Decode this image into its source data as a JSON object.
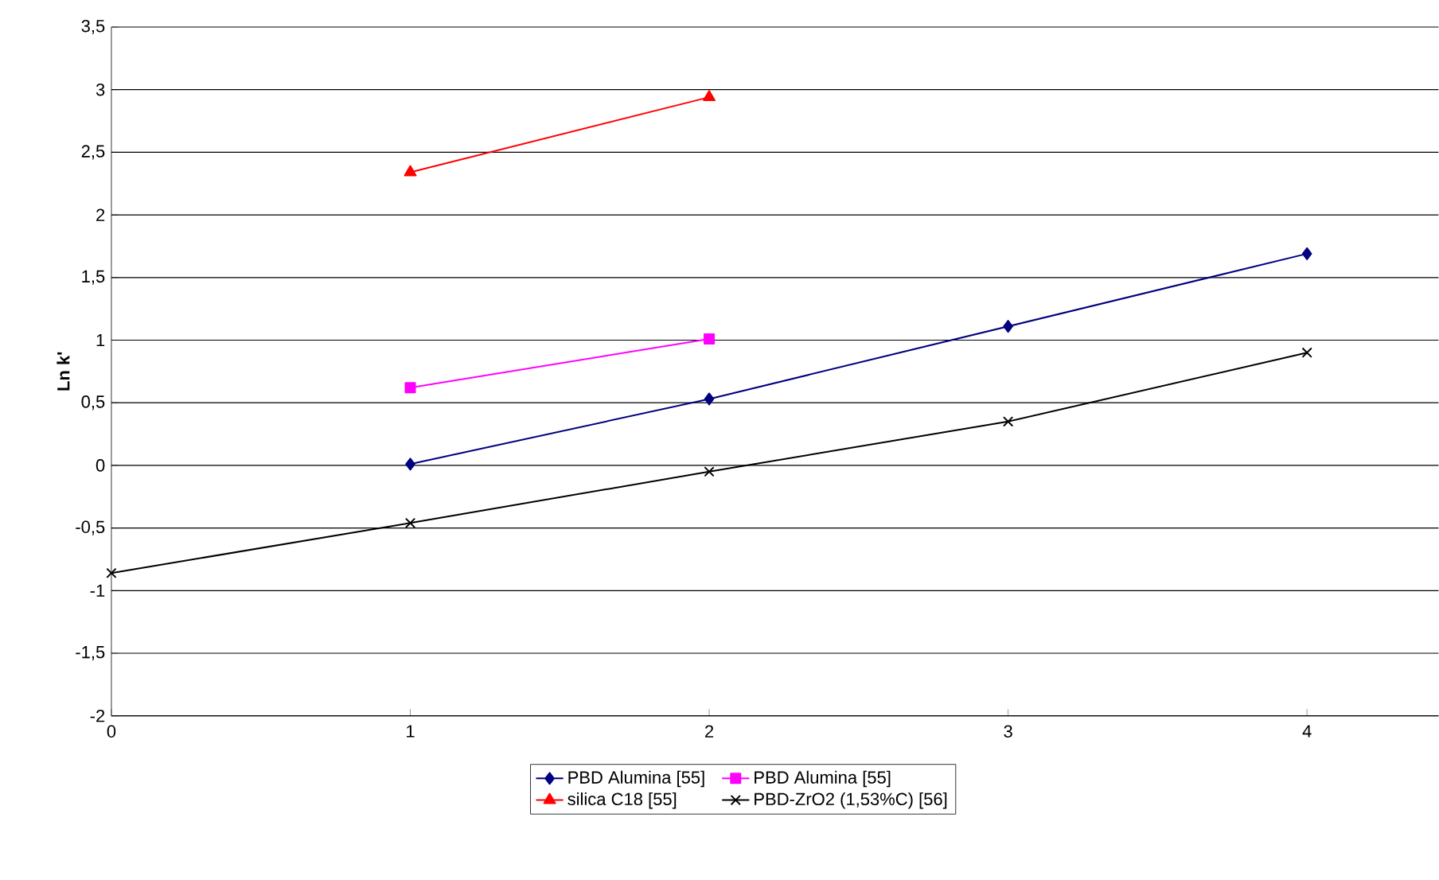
{
  "chart_data": {
    "type": "line",
    "ylabel": "Ln k'",
    "x": [
      0,
      1,
      2,
      3,
      4
    ],
    "xlim": [
      0,
      4.44
    ],
    "xticks": [
      0,
      1,
      2,
      3,
      4
    ],
    "ylim": [
      -2,
      3.5
    ],
    "yticks": [
      {
        "value": -2,
        "label": "-2"
      },
      {
        "value": -1.5,
        "label": "-1,5"
      },
      {
        "value": -1,
        "label": "-1"
      },
      {
        "value": -0.5,
        "label": "-0,5"
      },
      {
        "value": 0,
        "label": "0"
      },
      {
        "value": 0.5,
        "label": "0,5"
      },
      {
        "value": 1,
        "label": "1"
      },
      {
        "value": 1.5,
        "label": "1,5"
      },
      {
        "value": 2,
        "label": "2"
      },
      {
        "value": 2.5,
        "label": "2,5"
      },
      {
        "value": 3,
        "label": "3"
      },
      {
        "value": 3.5,
        "label": "3,5"
      }
    ],
    "grid": "y",
    "legend": "bottom",
    "series": [
      {
        "name": "PBD Alumina [55]",
        "color": "#000080",
        "marker": "diamond",
        "values": [
          null,
          0.01,
          0.53,
          1.11,
          1.69
        ]
      },
      {
        "name": "PBD Alumina [55]",
        "color": "#ff00ff",
        "marker": "square",
        "values": [
          null,
          0.62,
          1.01,
          null,
          null
        ]
      },
      {
        "name": "silica C18 [55]",
        "color": "#ff0000",
        "marker": "triangle",
        "values": [
          null,
          2.34,
          2.94,
          null,
          null
        ]
      },
      {
        "name": "PBD-ZrO2 (1,53%C) [56]",
        "color": "#000000",
        "marker": "cross",
        "values": [
          -0.86,
          -0.46,
          -0.05,
          0.35,
          0.9
        ]
      }
    ]
  }
}
